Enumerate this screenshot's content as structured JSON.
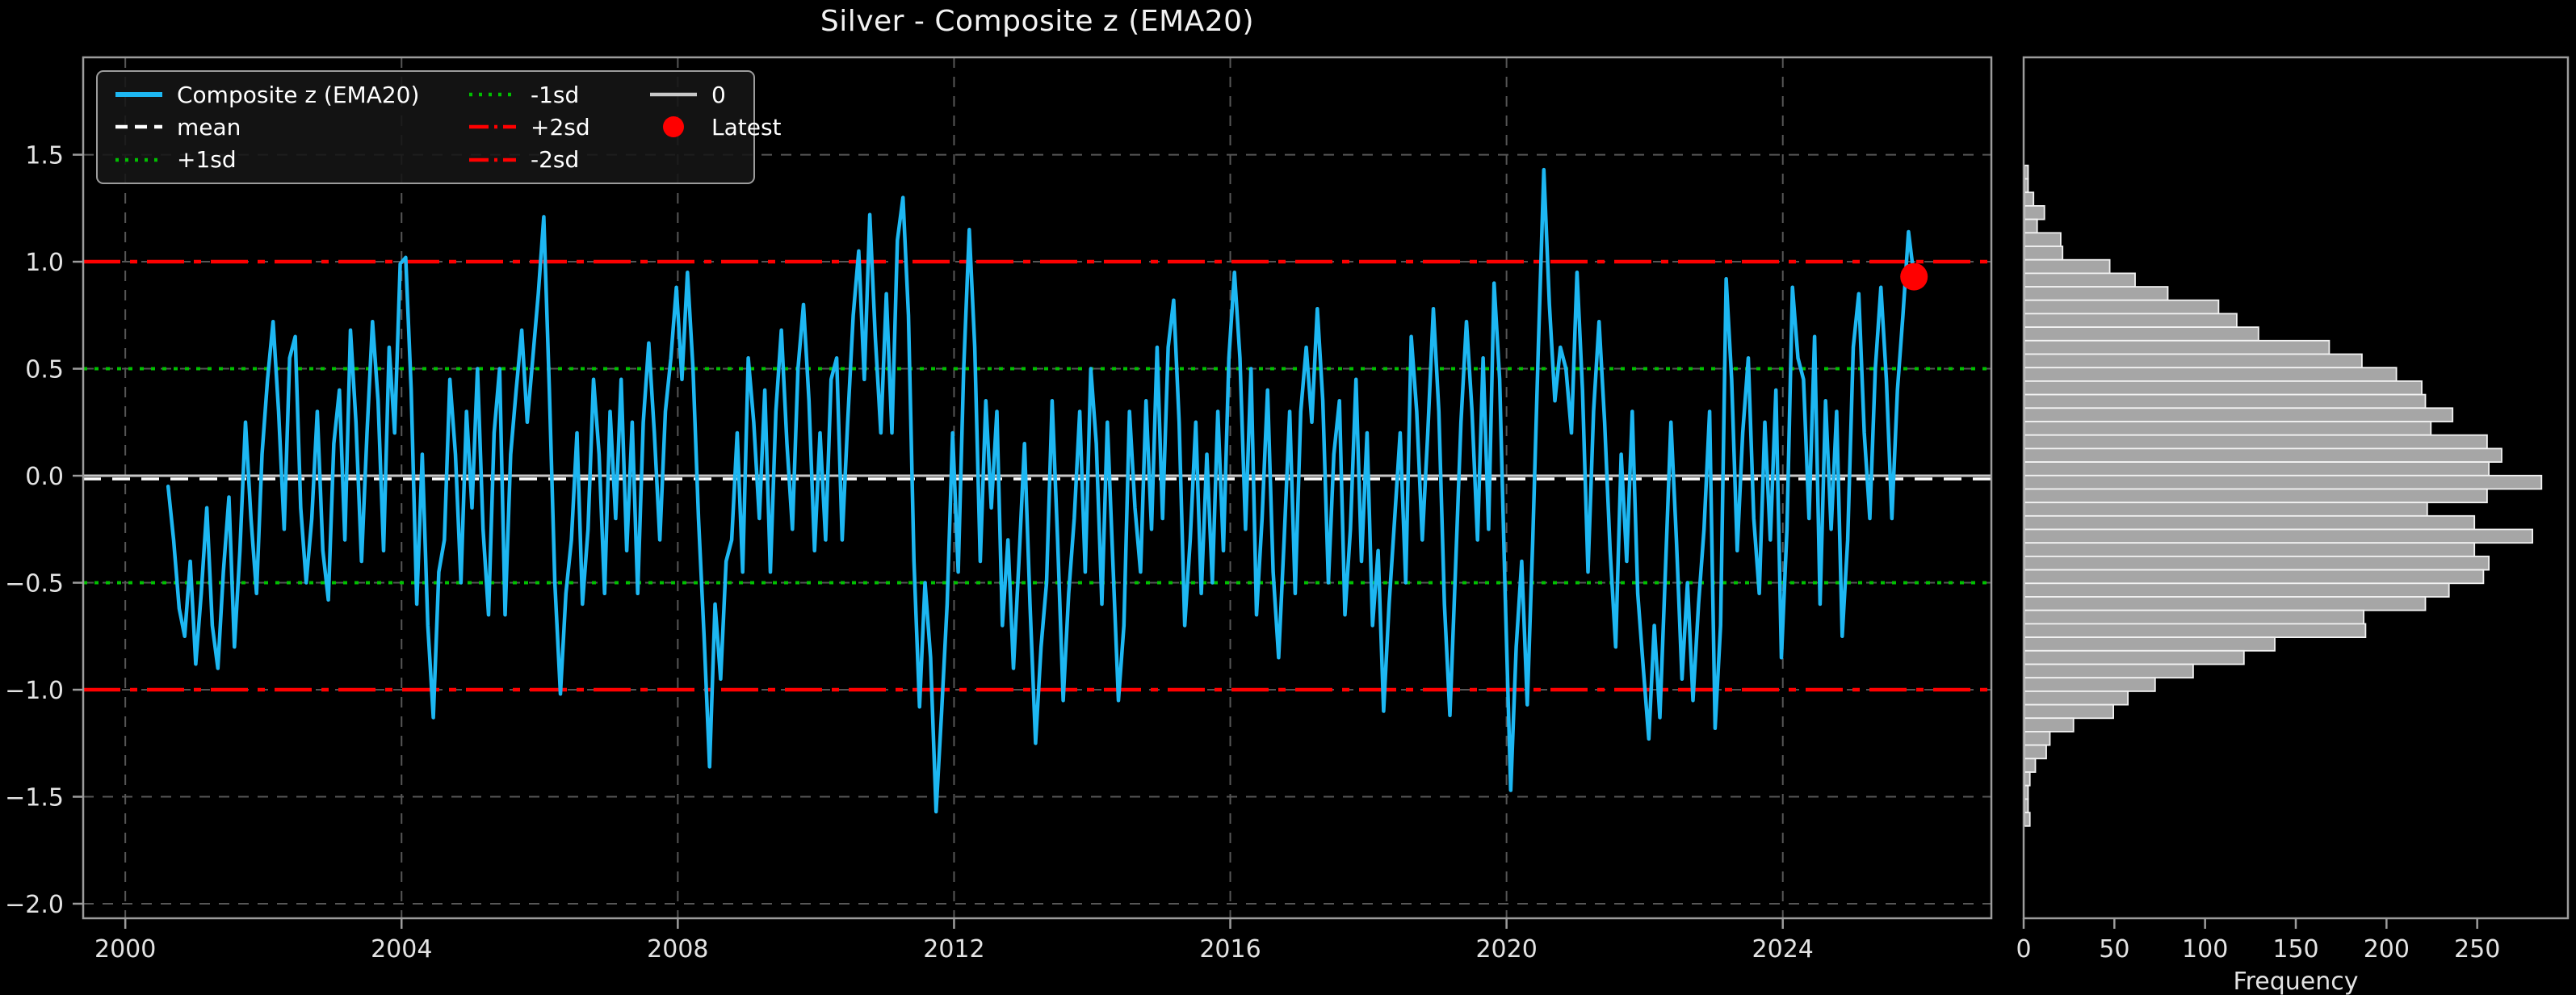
{
  "title": "Silver - Composite z (EMA20)",
  "colors": {
    "background": "#000000",
    "series": "#1db7f2",
    "mean_line": "#ffffff",
    "sd1_line": "#00c000",
    "sd2_line": "#ff0000",
    "zero_line": "#c8c8c8",
    "grid": "#565656",
    "spine": "#9c9c9c",
    "text": "#e3e3e3",
    "bar_fill": "#a6a6a6",
    "bar_edge": "#f2f2f2",
    "latest_marker": "#ff0000"
  },
  "legend": {
    "position": "upper-left",
    "items": [
      {
        "name": "composite-z",
        "label": "Composite z (EMA20)",
        "swatch": "solid",
        "color": "#1db7f2",
        "col": 1,
        "row": 1
      },
      {
        "name": "mean",
        "label": "mean",
        "swatch": "dashed",
        "color": "#ffffff",
        "col": 1,
        "row": 2
      },
      {
        "name": "plus-1sd",
        "label": "+1sd",
        "swatch": "dotted",
        "color": "#00c000",
        "col": 1,
        "row": 3
      },
      {
        "name": "minus-1sd",
        "label": "-1sd",
        "swatch": "dotted",
        "color": "#00c000",
        "col": 2,
        "row": 1
      },
      {
        "name": "plus-2sd",
        "label": "+2sd",
        "swatch": "dashdot",
        "color": "#ff0000",
        "col": 2,
        "row": 2
      },
      {
        "name": "minus-2sd",
        "label": "-2sd",
        "swatch": "dashdot",
        "color": "#ff0000",
        "col": 2,
        "row": 3
      },
      {
        "name": "zero",
        "label": "0",
        "swatch": "solid",
        "color": "#c8c8c8",
        "col": 3,
        "row": 1
      },
      {
        "name": "latest",
        "label": "Latest",
        "swatch": "dot",
        "color": "#ff0000",
        "col": 3,
        "row": 2
      }
    ]
  },
  "chart_data": [
    {
      "type": "line",
      "panel": "main",
      "title": "Silver - Composite z (EMA20)",
      "xlabel": "",
      "ylabel": "",
      "grid": true,
      "xlim": [
        1999.39,
        2027.02
      ],
      "ylim": [
        -2.068,
        1.955
      ],
      "x_ticks": {
        "values": [
          2000,
          2004,
          2008,
          2012,
          2016,
          2020,
          2024
        ],
        "labels": [
          "2000",
          "2004",
          "2008",
          "2012",
          "2016",
          "2020",
          "2024"
        ]
      },
      "y_ticks": {
        "values": [
          1.5,
          1.0,
          0.5,
          0.0,
          -0.5,
          -1.0,
          -1.5,
          -2.0
        ],
        "labels": [
          "1.5",
          "1.0",
          "0.5",
          "0.0",
          "−0.5",
          "−1.0",
          "−1.5",
          "−2.0"
        ]
      },
      "reference_lines": {
        "mean": -0.015,
        "plus_1sd": 0.5,
        "minus_1sd": -0.5,
        "plus_2sd": 1.0,
        "minus_2sd": -1.0,
        "zero": 0.0
      },
      "latest_point": {
        "x": 2025.9,
        "y": 0.93
      },
      "series": {
        "name": "Composite z (EMA20)",
        "x_start": 2000.62,
        "x_step": 0.08,
        "y": [
          -0.05,
          -0.3,
          -0.62,
          -0.75,
          -0.4,
          -0.88,
          -0.55,
          -0.15,
          -0.7,
          -0.9,
          -0.45,
          -0.1,
          -0.8,
          -0.35,
          0.25,
          -0.2,
          -0.55,
          0.1,
          0.45,
          0.72,
          0.3,
          -0.25,
          0.55,
          0.65,
          -0.15,
          -0.5,
          -0.2,
          0.3,
          -0.35,
          -0.58,
          0.15,
          0.4,
          -0.3,
          0.68,
          0.25,
          -0.4,
          0.2,
          0.72,
          0.35,
          -0.35,
          0.6,
          0.2,
          0.99,
          1.02,
          0.4,
          -0.6,
          0.1,
          -0.7,
          -1.13,
          -0.45,
          -0.3,
          0.45,
          0.1,
          -0.5,
          0.3,
          -0.15,
          0.5,
          -0.25,
          -0.65,
          0.2,
          0.5,
          -0.65,
          0.1,
          0.4,
          0.68,
          0.25,
          0.55,
          0.85,
          1.21,
          0.4,
          -0.5,
          -1.02,
          -0.55,
          -0.3,
          0.2,
          -0.6,
          -0.25,
          0.45,
          0.1,
          -0.55,
          0.3,
          -0.2,
          0.45,
          -0.35,
          0.25,
          -0.55,
          0.25,
          0.62,
          0.2,
          -0.3,
          0.3,
          0.55,
          0.88,
          0.45,
          0.95,
          0.5,
          -0.2,
          -0.75,
          -1.36,
          -0.6,
          -0.95,
          -0.4,
          -0.3,
          0.2,
          -0.45,
          0.55,
          0.25,
          -0.2,
          0.4,
          -0.45,
          0.3,
          0.68,
          0.15,
          -0.25,
          0.5,
          0.8,
          0.35,
          -0.35,
          0.2,
          -0.3,
          0.45,
          0.55,
          -0.3,
          0.25,
          0.75,
          1.05,
          0.45,
          1.22,
          0.65,
          0.2,
          0.85,
          0.2,
          1.1,
          1.3,
          0.75,
          -0.4,
          -1.08,
          -0.5,
          -0.85,
          -1.57,
          -1.1,
          -0.6,
          0.2,
          -0.45,
          0.5,
          1.15,
          0.6,
          -0.4,
          0.35,
          -0.15,
          0.3,
          -0.7,
          -0.3,
          -0.9,
          -0.4,
          0.15,
          -0.6,
          -1.25,
          -0.8,
          -0.5,
          0.35,
          -0.3,
          -1.05,
          -0.55,
          -0.2,
          0.3,
          -0.45,
          0.5,
          0.15,
          -0.6,
          0.25,
          -0.4,
          -1.05,
          -0.7,
          0.3,
          -0.15,
          -0.45,
          0.35,
          -0.25,
          0.6,
          -0.2,
          0.6,
          0.82,
          0.25,
          -0.7,
          -0.3,
          0.25,
          -0.55,
          0.1,
          -0.5,
          0.3,
          -0.35,
          0.55,
          0.95,
          0.55,
          -0.25,
          0.5,
          -0.65,
          -0.2,
          0.4,
          -0.45,
          -0.85,
          -0.3,
          0.3,
          -0.55,
          0.3,
          0.6,
          0.25,
          0.78,
          0.35,
          -0.5,
          0.1,
          0.35,
          -0.65,
          -0.25,
          0.45,
          -0.4,
          0.2,
          -0.7,
          -0.35,
          -1.1,
          -0.6,
          -0.2,
          0.2,
          -0.5,
          0.65,
          0.3,
          -0.3,
          0.2,
          0.78,
          0.3,
          -0.6,
          -1.12,
          -0.45,
          0.25,
          0.72,
          0.3,
          -0.3,
          0.55,
          -0.25,
          0.9,
          0.45,
          -0.55,
          -1.47,
          -0.8,
          -0.4,
          -1.07,
          -0.3,
          0.6,
          1.43,
          0.8,
          0.35,
          0.6,
          0.5,
          0.2,
          0.95,
          0.4,
          -0.45,
          0.3,
          0.72,
          0.25,
          -0.35,
          -0.8,
          0.1,
          -0.4,
          0.3,
          -0.55,
          -0.9,
          -1.23,
          -0.7,
          -1.13,
          -0.45,
          0.25,
          -0.3,
          -0.95,
          -0.5,
          -1.05,
          -0.6,
          -0.25,
          0.3,
          -1.18,
          -0.7,
          0.92,
          0.45,
          -0.35,
          0.2,
          0.55,
          -0.2,
          -0.55,
          0.25,
          -0.3,
          0.4,
          -0.85,
          -0.25,
          0.88,
          0.55,
          0.45,
          -0.2,
          0.65,
          -0.6,
          0.35,
          -0.25,
          0.3,
          -0.75,
          -0.3,
          0.6,
          0.85,
          0.2,
          -0.2,
          0.5,
          0.88,
          0.45,
          -0.2,
          0.4,
          0.75,
          1.14,
          0.93
        ]
      }
    },
    {
      "type": "bar",
      "panel": "histogram",
      "orientation": "horizontal",
      "xlabel": "Frequency",
      "ylabel": "",
      "grid": false,
      "xlim": [
        0,
        300
      ],
      "x_ticks": {
        "values": [
          0,
          50,
          100,
          150,
          200,
          250
        ],
        "labels": [
          "0",
          "50",
          "100",
          "150",
          "200",
          "250"
        ]
      },
      "shared_y_with_main": true,
      "bins": {
        "z_top": 1.45,
        "bin_height": 0.063,
        "frequencies_top_to_bottom": [
          2,
          2,
          5,
          11,
          7,
          20,
          21,
          47,
          61,
          79,
          107,
          117,
          129,
          168,
          186,
          205,
          219,
          221,
          236,
          224,
          255,
          263,
          256,
          285,
          255,
          222,
          248,
          280,
          248,
          256,
          253,
          234,
          221,
          187,
          188,
          138,
          121,
          93,
          72,
          57,
          49,
          27,
          14,
          12,
          6,
          3,
          2,
          2,
          3
        ]
      }
    }
  ]
}
